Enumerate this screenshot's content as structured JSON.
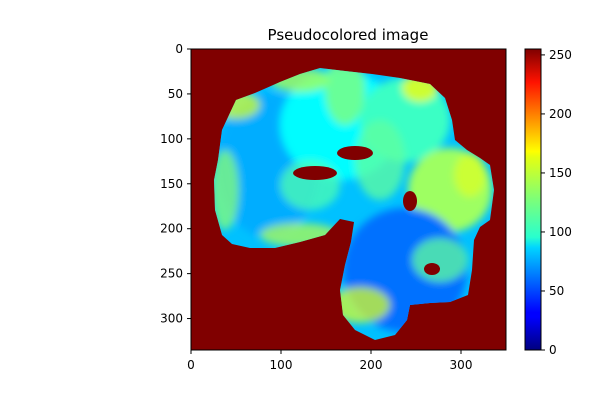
{
  "chart_data": {
    "type": "heatmap",
    "title": "Pseudocolored image",
    "colormap": "jet",
    "background_value": 255,
    "x_ticks": [
      "0",
      "100",
      "200",
      "300"
    ],
    "x_tick_values": [
      0,
      100,
      200,
      300
    ],
    "y_ticks": [
      "0",
      "50",
      "100",
      "150",
      "200",
      "250",
      "300"
    ],
    "y_tick_values": [
      0,
      50,
      100,
      150,
      200,
      250,
      300
    ],
    "xlim": [
      0,
      350
    ],
    "ylim": [
      335,
      0
    ],
    "colorbar": {
      "ticks": [
        "0",
        "50",
        "100",
        "150",
        "200",
        "250"
      ],
      "tick_values": [
        0,
        50,
        100,
        150,
        200,
        250
      ],
      "range": [
        0,
        255
      ]
    },
    "regions": [
      {
        "name": "upper-left lobe",
        "value": 75
      },
      {
        "name": "upper-middle lobe",
        "value": 95
      },
      {
        "name": "upper-right lobe",
        "value": 110
      },
      {
        "name": "right lobe",
        "value": 135
      },
      {
        "name": "lower lobe",
        "value": 60
      },
      {
        "name": "slit near x 80-125, y 140-150",
        "value": 255
      },
      {
        "name": "spot near x 185, y 115",
        "value": 255
      },
      {
        "name": "spot near x 245, y 170",
        "value": 255
      },
      {
        "name": "spot near x 270, y 245",
        "value": 255
      }
    ]
  }
}
